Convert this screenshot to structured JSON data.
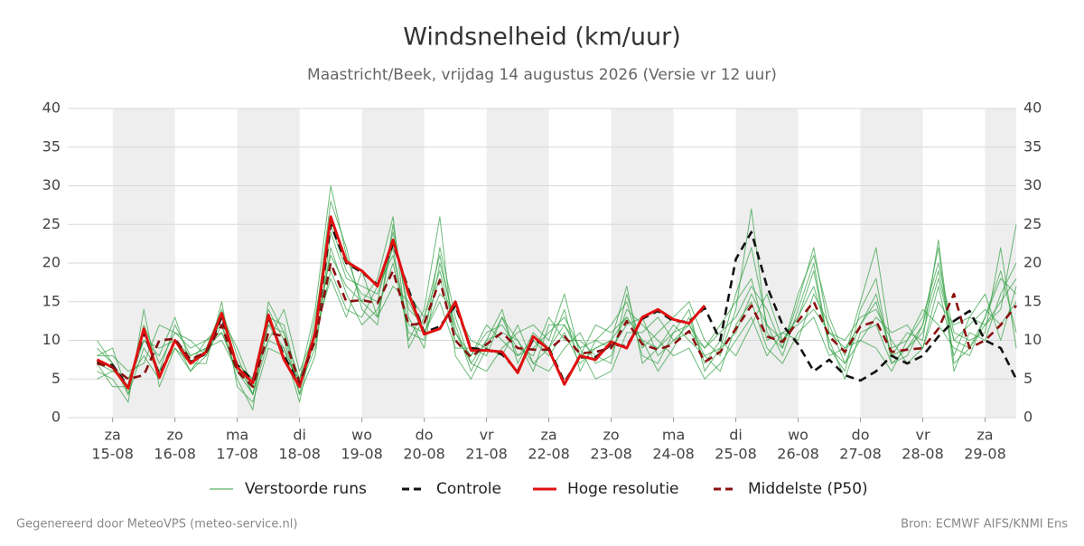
{
  "chart_data": {
    "type": "line",
    "title": "Windsnelheid (km/uur)",
    "subtitle": "Maastricht/Beek, vrijdag 14 augustus 2026 (Versie vr 12 uur)",
    "footer_left": "Gegenereerd door MeteoVPS (meteo-service.nl)",
    "footer_right": "Bron: ECMWF AIFS/KNMI Ens",
    "xlim": [
      -0.72,
      14.5
    ],
    "xticks": [
      {
        "value": 0,
        "label": "za",
        "date": "15-08"
      },
      {
        "value": 1,
        "label": "zo",
        "date": "16-08"
      },
      {
        "value": 2,
        "label": "ma",
        "date": "17-08"
      },
      {
        "value": 3,
        "label": "di",
        "date": "18-08"
      },
      {
        "value": 4,
        "label": "wo",
        "date": "19-08"
      },
      {
        "value": 5,
        "label": "do",
        "date": "20-08"
      },
      {
        "value": 6,
        "label": "vr",
        "date": "21-08"
      },
      {
        "value": 7,
        "label": "za",
        "date": "22-08"
      },
      {
        "value": 8,
        "label": "zo",
        "date": "23-08"
      },
      {
        "value": 9,
        "label": "ma",
        "date": "24-08"
      },
      {
        "value": 10,
        "label": "di",
        "date": "25-08"
      },
      {
        "value": 11,
        "label": "wo",
        "date": "26-08"
      },
      {
        "value": 12,
        "label": "do",
        "date": "27-08"
      },
      {
        "value": 13,
        "label": "vr",
        "date": "28-08"
      },
      {
        "value": 14,
        "label": "za",
        "date": "29-08"
      }
    ],
    "alternate_day_shading": true,
    "ylim": [
      0,
      40
    ],
    "yticks": [
      0,
      5,
      10,
      15,
      20,
      25,
      30,
      35,
      40
    ],
    "grid": true,
    "x": [
      -0.25,
      0,
      0.25,
      0.5,
      0.75,
      1,
      1.25,
      1.5,
      1.75,
      2,
      2.25,
      2.5,
      2.75,
      3,
      3.25,
      3.5,
      3.75,
      4,
      4.25,
      4.5,
      4.75,
      5,
      5.25,
      5.5,
      5.75,
      6,
      6.25,
      6.5,
      6.75,
      7,
      7.25,
      7.5,
      7.75,
      8,
      8.25,
      8.5,
      8.75,
      9,
      9.25,
      9.5,
      9.75,
      10,
      10.25,
      10.5,
      10.75,
      11,
      11.25,
      11.5,
      11.75,
      12,
      12.25,
      12.5,
      12.75,
      13,
      13.25,
      13.5,
      13.75,
      14,
      14.25,
      14.5
    ],
    "ensemble": {
      "name": "Verstoorde runs",
      "color": "#2e9e3e",
      "runs": [
        [
          9,
          7,
          3,
          9,
          6,
          12,
          8,
          9,
          14,
          8,
          3,
          12,
          9,
          2,
          12,
          28,
          22,
          14,
          12,
          25,
          13,
          9,
          20,
          12,
          6,
          10,
          14,
          7,
          11,
          9,
          14,
          6,
          10,
          12,
          15,
          8,
          7,
          11,
          14,
          6,
          9,
          16,
          22,
          12,
          8,
          14,
          20,
          9,
          6,
          14,
          18,
          7,
          8,
          12,
          22,
          6,
          11,
          10,
          16,
          20
        ],
        [
          6,
          5,
          2,
          14,
          4,
          9,
          6,
          8,
          12,
          5,
          1,
          15,
          11,
          3,
          8,
          24,
          18,
          17,
          16,
          22,
          10,
          14,
          26,
          8,
          5,
          9,
          8,
          12,
          7,
          6,
          9,
          11,
          7,
          8,
          14,
          12,
          10,
          8,
          9,
          5,
          7,
          10,
          13,
          8,
          11,
          10,
          16,
          12,
          7,
          10,
          9,
          6,
          10,
          14,
          12,
          9,
          8,
          13,
          19,
          11
        ],
        [
          8,
          8,
          6,
          7,
          12,
          11,
          9,
          10,
          11,
          7,
          5,
          10,
          14,
          6,
          11,
          18,
          13,
          19,
          13,
          17,
          15,
          11,
          15,
          9,
          9,
          8,
          13,
          10,
          6,
          12,
          12,
          9,
          5,
          6,
          11,
          11,
          13,
          10,
          12,
          9,
          11,
          13,
          17,
          14,
          9,
          15,
          22,
          11,
          10,
          13,
          14,
          10,
          7,
          9,
          15,
          12,
          13,
          16,
          10,
          17
        ],
        [
          7,
          4,
          4,
          10,
          8,
          13,
          7,
          7,
          15,
          4,
          2,
          9,
          8,
          5,
          14,
          30,
          21,
          15,
          18,
          26,
          9,
          13,
          19,
          11,
          8,
          12,
          10,
          8,
          10,
          8,
          11,
          7,
          9,
          10,
          17,
          7,
          9,
          12,
          10,
          8,
          6,
          12,
          15,
          9,
          7,
          11,
          13,
          8,
          9,
          12,
          16,
          8,
          11,
          10,
          23,
          7,
          9,
          12,
          14,
          25
        ],
        [
          5,
          6,
          5,
          8,
          5,
          10,
          8,
          9,
          10,
          6,
          3,
          13,
          12,
          4,
          9,
          22,
          16,
          12,
          14,
          20,
          11,
          10,
          22,
          13,
          7,
          6,
          9,
          11,
          12,
          10,
          16,
          8,
          12,
          11,
          13,
          10,
          6,
          9,
          13,
          7,
          10,
          8,
          12,
          16,
          10,
          13,
          17,
          10,
          5,
          11,
          12,
          7,
          9,
          11,
          18,
          10,
          12,
          14,
          12,
          15
        ],
        [
          8,
          9,
          3,
          12,
          7,
          11,
          10,
          8,
          13,
          9,
          4,
          14,
          10,
          3,
          13,
          25,
          19,
          16,
          15,
          24,
          14,
          12,
          18,
          10,
          8,
          11,
          12,
          9,
          8,
          13,
          10,
          10,
          8,
          7,
          16,
          9,
          11,
          13,
          15,
          10,
          8,
          14,
          27,
          11,
          9,
          16,
          21,
          13,
          8,
          15,
          22,
          9,
          10,
          13,
          20,
          11,
          10,
          11,
          22,
          9
        ],
        [
          10,
          7,
          4,
          11,
          6,
          9,
          7,
          10,
          12,
          7,
          3,
          10,
          9,
          4,
          10,
          19,
          14,
          13,
          17,
          21,
          12,
          11,
          16,
          14,
          10,
          9,
          13,
          8,
          9,
          11,
          13,
          9,
          10,
          9,
          12,
          13,
          8,
          10,
          11,
          9,
          12,
          15,
          18,
          10,
          11,
          12,
          14,
          11,
          9,
          10,
          13,
          11,
          12,
          9,
          17,
          8,
          13,
          12,
          15,
          18
        ],
        [
          7,
          6,
          5,
          10,
          9,
          10,
          6,
          9,
          11,
          6,
          5,
          12,
          11,
          5,
          11,
          21,
          17,
          15,
          13,
          23,
          16,
          13,
          21,
          11,
          7,
          10,
          11,
          10,
          7,
          9,
          12,
          8,
          9,
          10,
          13,
          10,
          9,
          11,
          12,
          8,
          9,
          11,
          16,
          12,
          10,
          13,
          19,
          9,
          7,
          12,
          15,
          8,
          9,
          12,
          19,
          10,
          9,
          13,
          18,
          16
        ]
      ]
    },
    "series": [
      {
        "name": "Controle",
        "color": "#111111",
        "dash": true,
        "values": [
          7.2,
          6.8,
          4,
          11,
          5.5,
          10,
          7.2,
          8.3,
          13,
          6.8,
          4.8,
          13,
          8,
          4.2,
          10.5,
          25,
          20,
          18.8,
          17.2,
          22.5,
          16.5,
          11,
          11.8,
          14.5,
          9,
          8.8,
          8.2,
          6,
          10.2,
          9,
          4.6,
          7.8,
          7.8,
          9.5,
          9.2,
          12.8,
          13.8,
          12.5,
          12.4,
          14.2,
          10,
          20.5,
          24,
          17,
          12,
          9.5,
          6,
          7.5,
          5.5,
          4.8,
          6,
          8,
          7,
          8,
          10.5,
          12.5,
          13.8,
          10,
          9,
          5
        ]
      },
      {
        "name": "Hoge resolutie",
        "color": "#e01010",
        "dash": false,
        "values": [
          7.5,
          6.5,
          3.8,
          11.5,
          5.2,
          10,
          7,
          8.5,
          13.5,
          6.5,
          4.5,
          13.3,
          7.5,
          4,
          11,
          26,
          20.2,
          19,
          17,
          23,
          16,
          10.8,
          11.5,
          15,
          8.7,
          8.7,
          8.5,
          5.8,
          10.5,
          8.8,
          4.3,
          8,
          7.5,
          9.8,
          9,
          13,
          14,
          12.7,
          12.2,
          14.5,
          null,
          null,
          null,
          null,
          null,
          null,
          null,
          null,
          null,
          null,
          null,
          null,
          null,
          null,
          null,
          null,
          null,
          null,
          null,
          null
        ]
      },
      {
        "name": "Middelste (P50)",
        "color": "#8b1010",
        "dash": true,
        "values": [
          7,
          6.5,
          5,
          5.5,
          10,
          10.2,
          7.5,
          8.5,
          12,
          6,
          4,
          11,
          10.5,
          4.5,
          10,
          20,
          15,
          15.2,
          14.8,
          19,
          12,
          12.2,
          17.8,
          10,
          7.8,
          9.5,
          11,
          9,
          8.8,
          8.8,
          10.5,
          8.3,
          8.5,
          9,
          12.5,
          9.5,
          8.8,
          9.5,
          11.2,
          7.2,
          8.5,
          11.5,
          14.5,
          10.5,
          9.8,
          12.5,
          15,
          10.5,
          8.5,
          11.8,
          12.5,
          8.5,
          8.8,
          9,
          11.5,
          16,
          9,
          10,
          12,
          14.5
        ]
      }
    ]
  }
}
